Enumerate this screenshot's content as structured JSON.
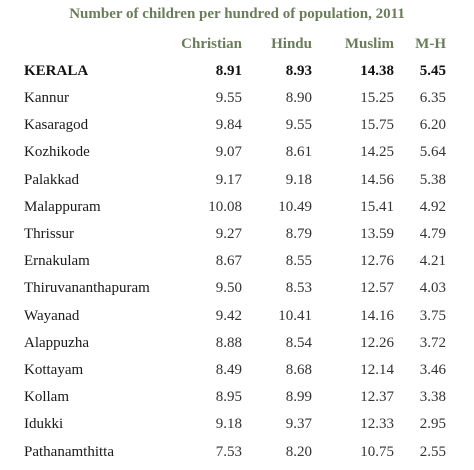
{
  "title": "Number of children per hundred of population, 2011",
  "headers": [
    "Christian",
    "Hindu",
    "Muslim",
    "M-H"
  ],
  "total": {
    "name": "KERALA",
    "christian": "8.91",
    "hindu": "8.93",
    "muslim": "14.38",
    "mh": "5.45"
  },
  "rows": [
    {
      "name": "Kannur",
      "christian": "9.55",
      "hindu": "8.90",
      "muslim": "15.25",
      "mh": "6.35"
    },
    {
      "name": "Kasaragod",
      "christian": "9.84",
      "hindu": "9.55",
      "muslim": "15.75",
      "mh": "6.20"
    },
    {
      "name": "Kozhikode",
      "christian": "9.07",
      "hindu": "8.61",
      "muslim": "14.25",
      "mh": "5.64"
    },
    {
      "name": "Palakkad",
      "christian": "9.17",
      "hindu": "9.18",
      "muslim": "14.56",
      "mh": "5.38"
    },
    {
      "name": "Malappuram",
      "christian": "10.08",
      "hindu": "10.49",
      "muslim": "15.41",
      "mh": "4.92"
    },
    {
      "name": "Thrissur",
      "christian": "9.27",
      "hindu": "8.79",
      "muslim": "13.59",
      "mh": "4.79"
    },
    {
      "name": "Ernakulam",
      "christian": "8.67",
      "hindu": "8.55",
      "muslim": "12.76",
      "mh": "4.21"
    },
    {
      "name": "Thiruvananthapuram",
      "christian": "9.50",
      "hindu": "8.53",
      "muslim": "12.57",
      "mh": "4.03"
    },
    {
      "name": "Wayanad",
      "christian": "9.42",
      "hindu": "10.41",
      "muslim": "14.16",
      "mh": "3.75"
    },
    {
      "name": "Alappuzha",
      "christian": "8.88",
      "hindu": "8.54",
      "muslim": "12.26",
      "mh": "3.72"
    },
    {
      "name": "Kottayam",
      "christian": "8.49",
      "hindu": "8.68",
      "muslim": "12.14",
      "mh": "3.46"
    },
    {
      "name": "Kollam",
      "christian": "8.95",
      "hindu": "8.99",
      "muslim": "12.37",
      "mh": "3.38"
    },
    {
      "name": "Idukki",
      "christian": "9.18",
      "hindu": "9.37",
      "muslim": "12.33",
      "mh": "2.95"
    },
    {
      "name": "Pathanamthitta",
      "christian": "7.53",
      "hindu": "8.20",
      "muslim": "10.75",
      "mh": "2.55"
    }
  ]
}
